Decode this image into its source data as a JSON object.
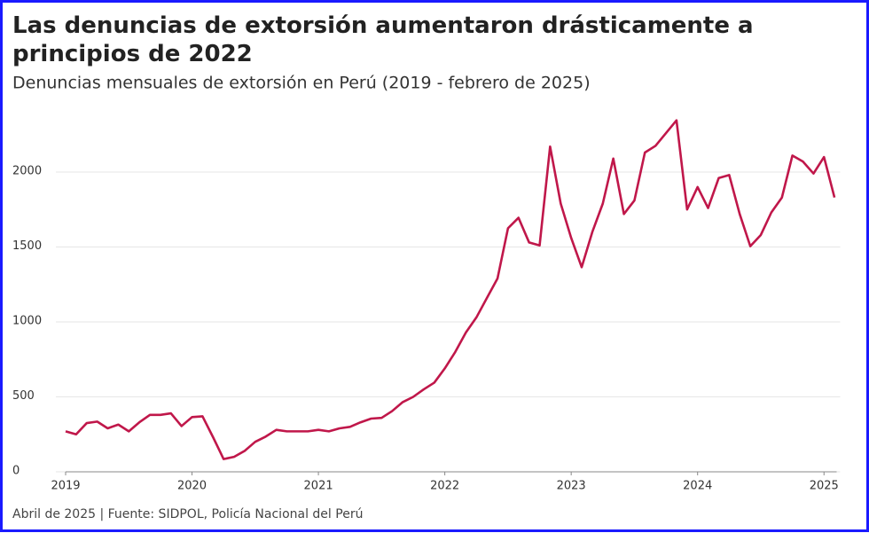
{
  "chart_data": {
    "type": "line",
    "title": "Las denuncias de extorsión aumentaron drásticamente a principios de 2022",
    "subtitle": "Denuncias mensuales de extorsión en Perú (2019 - febrero de 2025)",
    "footer": "Abril de 2025 | Fuente: SIDPOL, Policía Nacional del Perú",
    "xlim": [
      2019,
      2025.1
    ],
    "xticks": [
      2019,
      2020,
      2021,
      2022,
      2023,
      2024,
      2025
    ],
    "ylim": [
      0,
      2400
    ],
    "yticks": [
      0,
      500,
      1000,
      1500,
      2000
    ],
    "grid": true,
    "x": [
      2019,
      2019.083,
      2019.167,
      2019.25,
      2019.333,
      2019.417,
      2019.5,
      2019.583,
      2019.667,
      2019.75,
      2019.833,
      2019.917,
      2020,
      2020.083,
      2020.167,
      2020.25,
      2020.333,
      2020.417,
      2020.5,
      2020.583,
      2020.667,
      2020.75,
      2020.833,
      2020.917,
      2021,
      2021.083,
      2021.167,
      2021.25,
      2021.333,
      2021.417,
      2021.5,
      2021.583,
      2021.667,
      2021.75,
      2021.833,
      2021.917,
      2022,
      2022.083,
      2022.167,
      2022.25,
      2022.333,
      2022.417,
      2022.5,
      2022.583,
      2022.667,
      2022.75,
      2022.833,
      2022.917,
      2023,
      2023.083,
      2023.167,
      2023.25,
      2023.333,
      2023.417,
      2023.5,
      2023.583,
      2023.667,
      2023.75,
      2023.833,
      2023.917,
      2024,
      2024.083,
      2024.167,
      2024.25,
      2024.333,
      2024.417,
      2024.5,
      2024.583,
      2024.667,
      2024.75,
      2024.833,
      2024.917,
      2025,
      2025.083
    ],
    "series": [
      {
        "color": "#c0174a",
        "values": [
          270,
          250,
          325,
          335,
          290,
          315,
          270,
          330,
          380,
          380,
          390,
          305,
          365,
          370,
          230,
          85,
          100,
          140,
          200,
          235,
          280,
          270,
          270,
          270,
          280,
          270,
          290,
          300,
          330,
          355,
          360,
          405,
          465,
          500,
          550,
          595,
          690,
          800,
          930,
          1030,
          1160,
          1290,
          1625,
          1695,
          1530,
          1510,
          2170,
          1790,
          1560,
          1365,
          1600,
          1790,
          2090,
          1720,
          1810,
          2130,
          2175,
          2260,
          2345,
          1750,
          1900,
          1760,
          1960,
          1980,
          1720,
          1505,
          1580,
          1730,
          1830,
          2110,
          2070,
          1990,
          2100,
          1830
        ]
      }
    ]
  }
}
